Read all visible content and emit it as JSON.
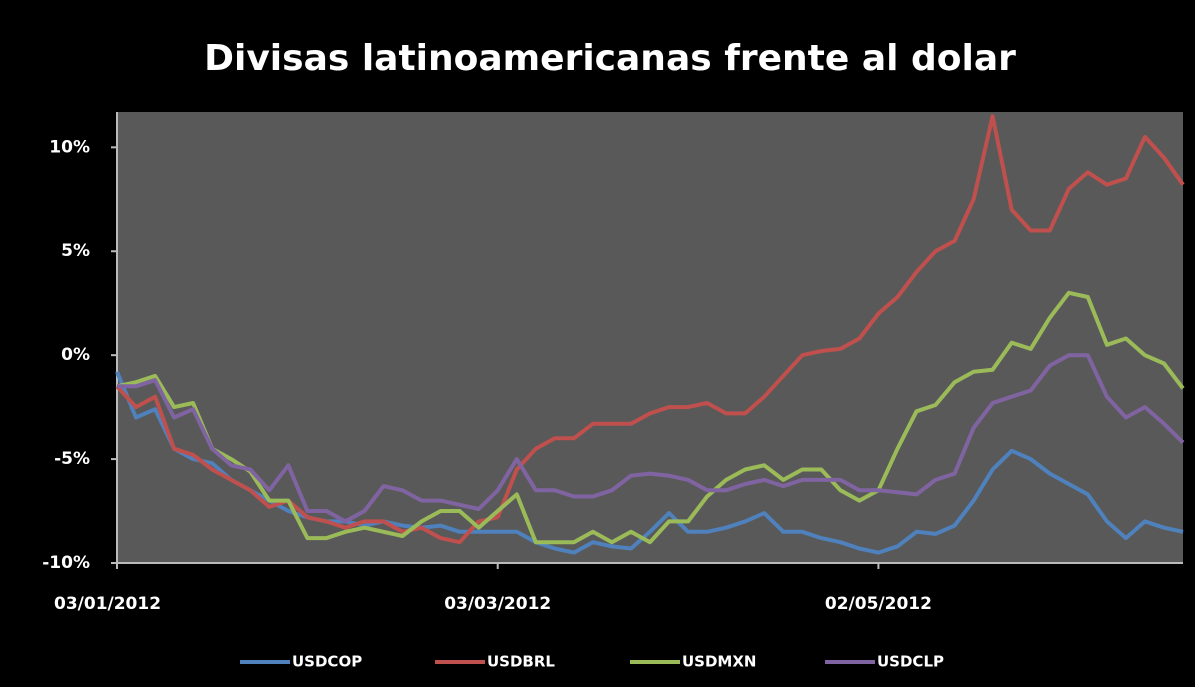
{
  "chart_data": {
    "type": "line",
    "title": "Divisas latinoamericanas frente al dolar",
    "categories": [
      "03/01/2012",
      null,
      null,
      null,
      null,
      null,
      null,
      null,
      null,
      null,
      null,
      null,
      null,
      null,
      null,
      null,
      null,
      null,
      null,
      null,
      "03/03/2012",
      null,
      null,
      null,
      null,
      null,
      null,
      null,
      null,
      null,
      null,
      null,
      null,
      null,
      null,
      null,
      null,
      null,
      null,
      null,
      "02/05/2012",
      null,
      null,
      null,
      null,
      null,
      null,
      null,
      null,
      null,
      null,
      null,
      null,
      null,
      null,
      null,
      null
    ],
    "ylim": [
      -10,
      11.7
    ],
    "yticks": [
      {
        "value": -10,
        "label": "-10%"
      },
      {
        "value": -5,
        "label": "-5%"
      },
      {
        "value": 0,
        "label": "0%"
      },
      {
        "value": 5,
        "label": "5%"
      },
      {
        "value": 10,
        "label": "10%"
      }
    ],
    "legend": "bottom",
    "series": [
      {
        "name": "USDCOP",
        "color": "#4f81bd",
        "values": [
          -0.8,
          -3,
          -2.6,
          -4.5,
          -5,
          -5.2,
          -6,
          -6.5,
          -7,
          -7.5,
          -7.8,
          -8,
          -8,
          -8.2,
          -8,
          -8.2,
          -8.3,
          -8.2,
          -8.5,
          -8.5,
          -8.5,
          -8.5,
          -9,
          -9.3,
          -9.5,
          -9,
          -9.2,
          -9.3,
          -8.5,
          -7.6,
          -8.5,
          -8.5,
          -8.3,
          -8,
          -7.6,
          -8.5,
          -8.5,
          -8.8,
          -9,
          -9.3,
          -9.5,
          -9.2,
          -8.5,
          -8.6,
          -8.2,
          -7,
          -5.5,
          -4.6,
          -5,
          -5.7,
          -6.2,
          -6.7,
          -8,
          -8.8,
          -8,
          -8.3,
          -8.5
        ]
      },
      {
        "name": "USDBRL",
        "color": "#c0504d",
        "values": [
          -1.5,
          -2.5,
          -2,
          -4.5,
          -4.8,
          -5.5,
          -6,
          -6.5,
          -7.3,
          -7,
          -7.8,
          -8,
          -8.3,
          -8,
          -8,
          -8.5,
          -8.3,
          -8.8,
          -9,
          -8,
          -7.8,
          -5.5,
          -4.5,
          -4,
          -4,
          -3.3,
          -3.3,
          -3.3,
          -2.8,
          -2.5,
          -2.5,
          -2.3,
          -2.8,
          -2.8,
          -2,
          -1,
          0,
          0.2,
          0.3,
          0.8,
          2,
          2.8,
          4,
          5,
          5.5,
          7.5,
          11.5,
          7,
          6,
          6,
          8,
          8.8,
          8.2,
          8.5,
          10.5,
          9.5,
          8.2
        ]
      },
      {
        "name": "USDMXN",
        "color": "#9bbb59",
        "values": [
          -1.5,
          -1.3,
          -1,
          -2.5,
          -2.3,
          -4.5,
          -5,
          -5.6,
          -7,
          -7,
          -8.8,
          -8.8,
          -8.5,
          -8.3,
          -8.5,
          -8.7,
          -8,
          -7.5,
          -7.5,
          -8.3,
          -7.5,
          -6.7,
          -9,
          -9,
          -9,
          -8.5,
          -9,
          -8.5,
          -9,
          -8,
          -8,
          -6.8,
          -6,
          -5.5,
          -5.3,
          -6,
          -5.5,
          -5.5,
          -6.5,
          -7,
          -6.5,
          -4.5,
          -2.7,
          -2.4,
          -1.3,
          -0.8,
          -0.7,
          0.6,
          0.3,
          1.8,
          3,
          2.8,
          0.5,
          0.8,
          0,
          -0.4,
          -1.6
        ]
      },
      {
        "name": "USDCLP",
        "color": "#8064a2",
        "values": [
          -1.5,
          -1.5,
          -1.2,
          -3,
          -2.6,
          -4.5,
          -5.3,
          -5.5,
          -6.5,
          -5.3,
          -7.5,
          -7.5,
          -8,
          -7.5,
          -6.3,
          -6.5,
          -7,
          -7,
          -7.2,
          -7.4,
          -6.5,
          -5,
          -6.5,
          -6.5,
          -6.8,
          -6.8,
          -6.5,
          -5.8,
          -5.7,
          -5.8,
          -6,
          -6.5,
          -6.5,
          -6.2,
          -6,
          -6.3,
          -6,
          -6,
          -6,
          -6.5,
          -6.5,
          -6.6,
          -6.7,
          -6,
          -5.7,
          -3.5,
          -2.3,
          -2,
          -1.7,
          -0.5,
          0,
          0,
          -2,
          -3,
          -2.5,
          -3.3,
          -4.2
        ]
      }
    ]
  }
}
